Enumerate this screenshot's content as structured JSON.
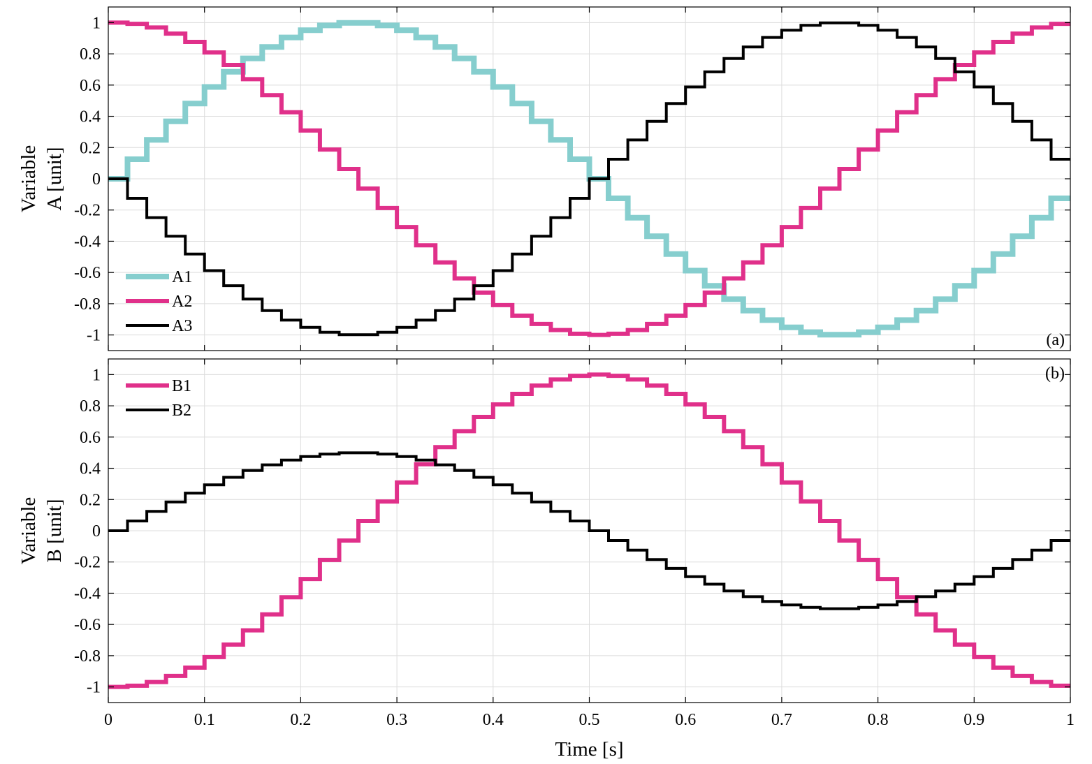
{
  "chart_data": [
    {
      "id": "a",
      "type": "line",
      "step": true,
      "panel_label": "(a)",
      "ylabel": [
        "Variable",
        "A [unit]"
      ],
      "xlim": [
        0,
        1
      ],
      "ylim": [
        -1.1,
        1.1
      ],
      "xticks": [
        0,
        0.1,
        0.2,
        0.3,
        0.4,
        0.5,
        0.6,
        0.7,
        0.8,
        0.9,
        1
      ],
      "yticks": [
        -1,
        -0.8,
        -0.6,
        -0.4,
        -0.2,
        0,
        0.2,
        0.4,
        0.6,
        0.8,
        1
      ],
      "ytick_labels": [
        "-1",
        "-0.8",
        "-0.6",
        "-0.4",
        "-0.2",
        "0",
        "0.2",
        "0.4",
        "0.6",
        "0.8",
        "1"
      ],
      "grid": true,
      "legend": "bottom-left",
      "sample_period": 0.02,
      "series": [
        {
          "name": "A1",
          "color": "#86cece",
          "width": 8,
          "amp": 1.0,
          "phase_deg": 0,
          "values": [
            0,
            0.125,
            0.249,
            0.368,
            0.482,
            0.588,
            0.685,
            0.771,
            0.844,
            0.905,
            0.951,
            0.982,
            0.998,
            0.998,
            0.982,
            0.951,
            0.905,
            0.844,
            0.771,
            0.685,
            0.588,
            0.482,
            0.368,
            0.249,
            0.125,
            0,
            -0.125,
            -0.249,
            -0.368,
            -0.482,
            -0.588,
            -0.685,
            -0.771,
            -0.844,
            -0.905,
            -0.951,
            -0.982,
            -0.998,
            -0.998,
            -0.982,
            -0.951,
            -0.905,
            -0.844,
            -0.771,
            -0.685,
            -0.588,
            -0.482,
            -0.368,
            -0.249,
            -0.125
          ]
        },
        {
          "name": "A2",
          "color": "#e0308a",
          "width": 6,
          "amp": 1.0,
          "phase_deg": 90
        },
        {
          "name": "A3",
          "color": "#000000",
          "width": 4,
          "amp": 1.0,
          "phase_deg": 180
        }
      ]
    },
    {
      "id": "b",
      "type": "line",
      "step": true,
      "panel_label": "(b)",
      "ylabel": [
        "Variable",
        "B [unit]"
      ],
      "xlabel": "Time [s]",
      "xlim": [
        0,
        1
      ],
      "ylim": [
        -1.1,
        1.1
      ],
      "xticks": [
        0,
        0.1,
        0.2,
        0.3,
        0.4,
        0.5,
        0.6,
        0.7,
        0.8,
        0.9,
        1
      ],
      "xtick_labels": [
        "0",
        "0.1",
        "0.2",
        "0.3",
        "0.4",
        "0.5",
        "0.6",
        "0.7",
        "0.8",
        "0.9",
        "1"
      ],
      "yticks": [
        -1,
        -0.8,
        -0.6,
        -0.4,
        -0.2,
        0,
        0.2,
        0.4,
        0.6,
        0.8,
        1
      ],
      "ytick_labels": [
        "-1",
        "-0.8",
        "-0.6",
        "-0.4",
        "-0.2",
        "0",
        "0.2",
        "0.4",
        "0.6",
        "0.8",
        "1"
      ],
      "grid": true,
      "legend": "top-left",
      "sample_period": 0.02,
      "series": [
        {
          "name": "B1",
          "color": "#e0308a",
          "width": 6,
          "amp": 1.0,
          "phase_deg": 270
        },
        {
          "name": "B2",
          "color": "#000000",
          "width": 4,
          "amp": 0.5,
          "phase_deg": 0
        }
      ]
    }
  ]
}
